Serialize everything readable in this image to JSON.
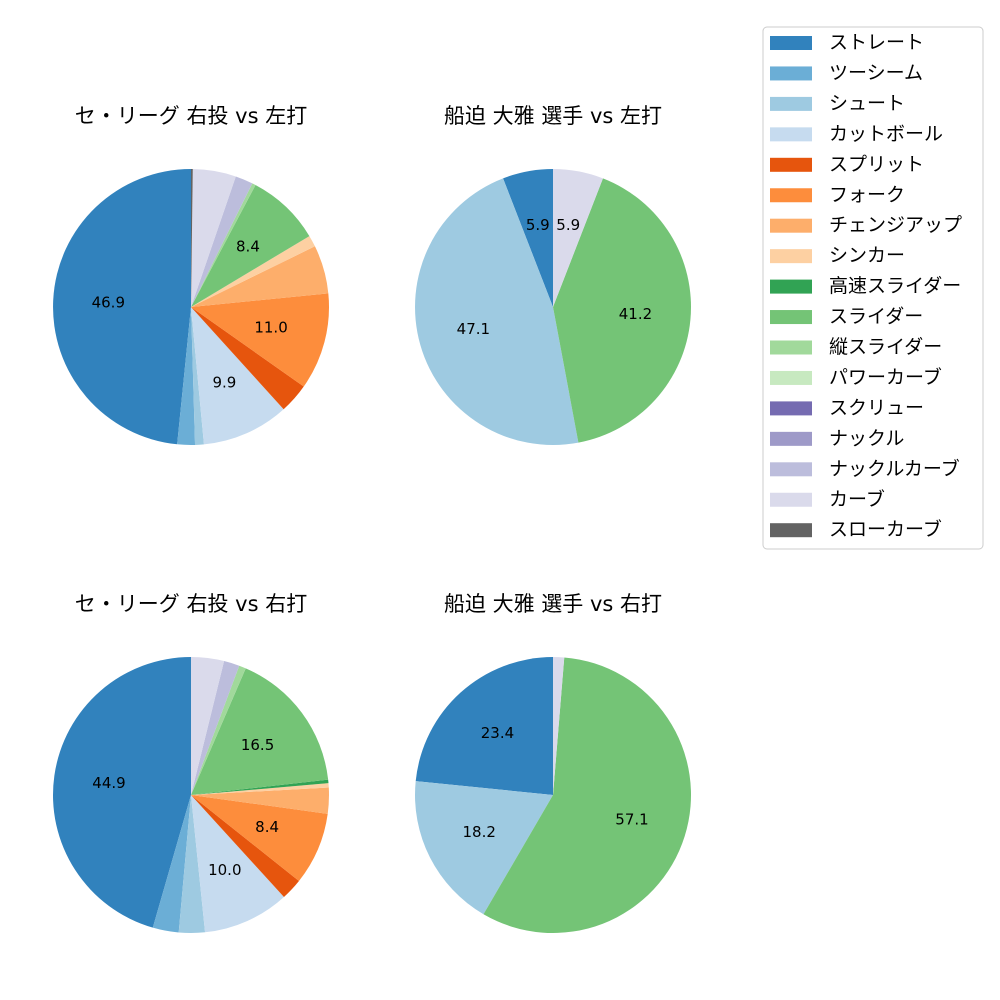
{
  "legend": {
    "items": [
      {
        "label": "ストレート",
        "color": "#3182bd"
      },
      {
        "label": "ツーシーム",
        "color": "#6baed6"
      },
      {
        "label": "シュート",
        "color": "#9ecae1"
      },
      {
        "label": "カットボール",
        "color": "#c6dbef"
      },
      {
        "label": "スプリット",
        "color": "#e6550d"
      },
      {
        "label": "フォーク",
        "color": "#fd8d3c"
      },
      {
        "label": "チェンジアップ",
        "color": "#fdae6b"
      },
      {
        "label": "シンカー",
        "color": "#fdd0a2"
      },
      {
        "label": "高速スライダー",
        "color": "#31a354"
      },
      {
        "label": "スライダー",
        "color": "#74c476"
      },
      {
        "label": "縦スライダー",
        "color": "#a1d99b"
      },
      {
        "label": "パワーカーブ",
        "color": "#c7e9c0"
      },
      {
        "label": "スクリュー",
        "color": "#756bb1"
      },
      {
        "label": "ナックル",
        "color": "#9e9ac8"
      },
      {
        "label": "ナックルカーブ",
        "color": "#bcbddc"
      },
      {
        "label": "カーブ",
        "color": "#dadaeb"
      },
      {
        "label": "スローカーブ",
        "color": "#636363"
      }
    ]
  },
  "chart_data": [
    {
      "type": "pie",
      "title": "セ・リーグ 右投 vs 左打",
      "slices": [
        {
          "category": "ストレート",
          "value": 46.9,
          "label": "46.9"
        },
        {
          "category": "ツーシーム",
          "value": 2.0,
          "label": ""
        },
        {
          "category": "シュート",
          "value": 1.0,
          "label": ""
        },
        {
          "category": "カットボール",
          "value": 9.9,
          "label": "9.9"
        },
        {
          "category": "スプリット",
          "value": 3.4,
          "label": ""
        },
        {
          "category": "フォーク",
          "value": 11.0,
          "label": "11.0"
        },
        {
          "category": "チェンジアップ",
          "value": 5.5,
          "label": ""
        },
        {
          "category": "シンカー",
          "value": 1.3,
          "label": ""
        },
        {
          "category": "スライダー",
          "value": 8.4,
          "label": "8.4"
        },
        {
          "category": "縦スライダー",
          "value": 0.4,
          "label": ""
        },
        {
          "category": "ナックルカーブ",
          "value": 2.0,
          "label": ""
        },
        {
          "category": "カーブ",
          "value": 4.9,
          "label": ""
        },
        {
          "category": "スローカーブ",
          "value": 0.2,
          "label": ""
        }
      ]
    },
    {
      "type": "pie",
      "title": "船迫 大雅 選手 vs 左打",
      "slices": [
        {
          "category": "ストレート",
          "value": 5.9,
          "label": "5.9"
        },
        {
          "category": "シュート",
          "value": 47.1,
          "label": "47.1"
        },
        {
          "category": "スライダー",
          "value": 41.2,
          "label": "41.2"
        },
        {
          "category": "カーブ",
          "value": 5.9,
          "label": "5.9"
        }
      ]
    },
    {
      "type": "pie",
      "title": "セ・リーグ 右投 vs 右打",
      "slices": [
        {
          "category": "ストレート",
          "value": 44.9,
          "label": "44.9"
        },
        {
          "category": "ツーシーム",
          "value": 3.0,
          "label": ""
        },
        {
          "category": "シュート",
          "value": 3.0,
          "label": ""
        },
        {
          "category": "カットボール",
          "value": 10.0,
          "label": "10.0"
        },
        {
          "category": "スプリット",
          "value": 2.5,
          "label": ""
        },
        {
          "category": "フォーク",
          "value": 8.4,
          "label": "8.4"
        },
        {
          "category": "チェンジアップ",
          "value": 3.0,
          "label": ""
        },
        {
          "category": "シンカー",
          "value": 0.5,
          "label": ""
        },
        {
          "category": "高速スライダー",
          "value": 0.4,
          "label": ""
        },
        {
          "category": "スライダー",
          "value": 16.5,
          "label": "16.5"
        },
        {
          "category": "縦スライダー",
          "value": 0.8,
          "label": ""
        },
        {
          "category": "ナックルカーブ",
          "value": 1.8,
          "label": ""
        },
        {
          "category": "カーブ",
          "value": 3.8,
          "label": ""
        }
      ]
    },
    {
      "type": "pie",
      "title": "船迫 大雅 選手 vs 右打",
      "slices": [
        {
          "category": "ストレート",
          "value": 23.4,
          "label": "23.4"
        },
        {
          "category": "シュート",
          "value": 18.2,
          "label": "18.2"
        },
        {
          "category": "スライダー",
          "value": 57.1,
          "label": "57.1"
        },
        {
          "category": "カーブ",
          "value": 1.3,
          "label": ""
        }
      ]
    }
  ]
}
